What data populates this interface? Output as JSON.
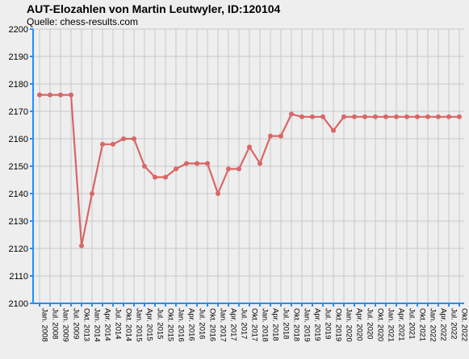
{
  "chart_data": {
    "type": "line",
    "title": "AUT-Elozahlen von Martin Leutwyler, ID:120104",
    "subtitle": "Quelle: chess-results.com",
    "xlabel": "",
    "ylabel": "",
    "ylim": [
      2100,
      2200
    ],
    "yticks": [
      2100,
      2110,
      2120,
      2130,
      2140,
      2150,
      2160,
      2170,
      2180,
      2190,
      2200
    ],
    "grid": true,
    "legend": "none",
    "categories": [
      "Jan. 2008",
      "Jul. 2008",
      "Jan. 2009",
      "Jul. 2009",
      "Okt. 2013",
      "Jan. 2014",
      "Apr. 2014",
      "Jul. 2014",
      "Okt. 2014",
      "Jan. 2015",
      "Apr. 2015",
      "Jul. 2015",
      "Okt. 2015",
      "Jan. 2016",
      "Apr. 2016",
      "Jul. 2016",
      "Okt. 2016",
      "Jan. 2017",
      "Apr. 2017",
      "Jul. 2017",
      "Okt. 2017",
      "Jan. 2018",
      "Apr. 2018",
      "Jul. 2018",
      "Okt. 2018",
      "Jan. 2019",
      "Apr. 2019",
      "Jul. 2019",
      "Okt. 2019",
      "Jan. 2020",
      "Apr. 2020",
      "Jul. 2020",
      "Okt. 2020",
      "Jan. 2021",
      "Apr. 2021",
      "Jul. 2021",
      "Okt. 2021",
      "Jan. 2022",
      "Apr. 2022",
      "Jul. 2022",
      "Okt. 2022"
    ],
    "series": [
      {
        "values": [
          2176,
          2176,
          2176,
          2176,
          2121,
          2140,
          2158,
          2158,
          2160,
          2160,
          2150,
          2146,
          2146,
          2149,
          2151,
          2151,
          2151,
          2140,
          2149,
          2149,
          2157,
          2151,
          2161,
          2161,
          2169,
          2168,
          2168,
          2168,
          2163,
          2168,
          2168,
          2168,
          2168,
          2168,
          2168,
          2168,
          2168,
          2168,
          2168,
          2168,
          2168
        ],
        "color": "#d96666"
      }
    ],
    "colors": {
      "background": "#eeeeee",
      "grid": "#c8c8c8",
      "axis": "#1e90ff",
      "line": "#d96666"
    }
  }
}
